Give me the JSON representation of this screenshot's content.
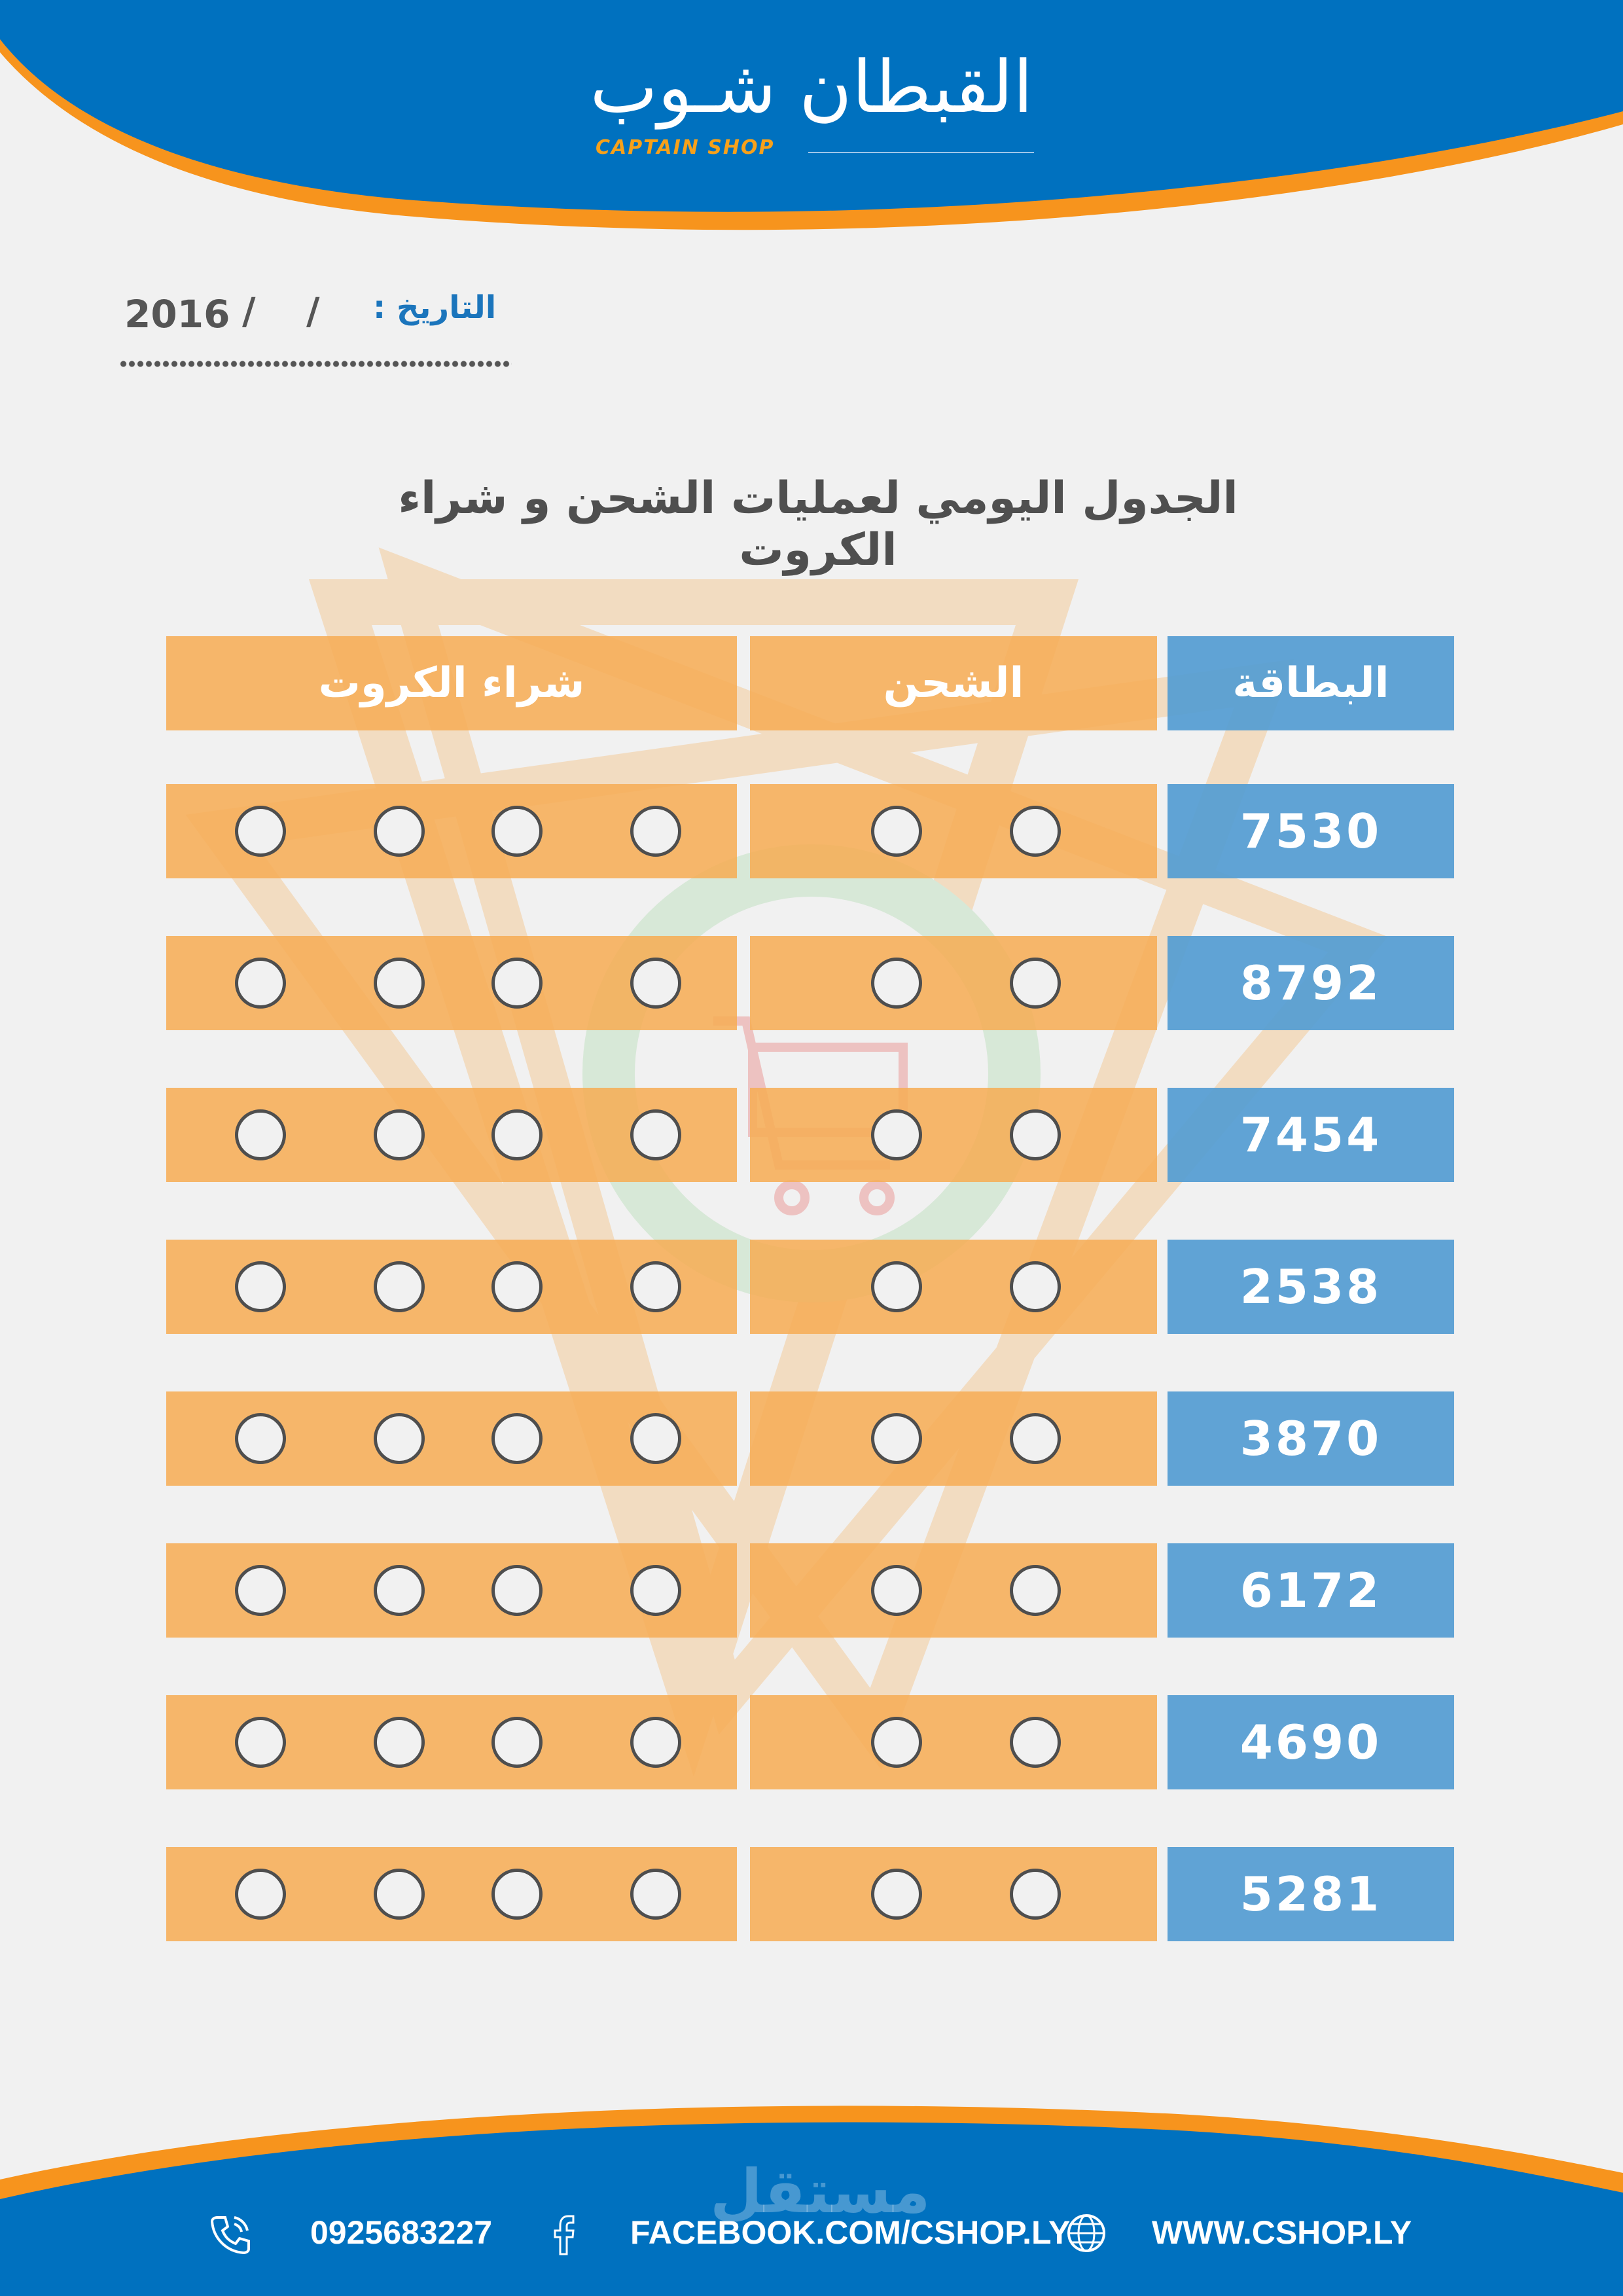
{
  "header": {
    "logo_arabic": "القبطان شـوب",
    "logo_english": "CAPTAIN SHOP"
  },
  "date": {
    "label": "التاريخ :",
    "slash": "/",
    "year": "2016"
  },
  "title": "الجدول اليومي لعمليات الشحن و شراء الكروت",
  "table": {
    "headers": {
      "card": "البطاقة",
      "charge": "الشحن",
      "buy": "شراء الكروت"
    },
    "rows": [
      {
        "card": "7530",
        "charge_slots": 2,
        "buy_slots": 4
      },
      {
        "card": "8792",
        "charge_slots": 2,
        "buy_slots": 4
      },
      {
        "card": "7454",
        "charge_slots": 2,
        "buy_slots": 4
      },
      {
        "card": "2538",
        "charge_slots": 2,
        "buy_slots": 4
      },
      {
        "card": "3870",
        "charge_slots": 2,
        "buy_slots": 4
      },
      {
        "card": "6172",
        "charge_slots": 2,
        "buy_slots": 4
      },
      {
        "card": "4690",
        "charge_slots": 2,
        "buy_slots": 4
      },
      {
        "card": "5281",
        "charge_slots": 2,
        "buy_slots": 4
      }
    ]
  },
  "footer": {
    "phone": "0925683227",
    "facebook": "FACEBOOK.COM/CSHOP.LY",
    "website": "WWW.CSHOP.LY",
    "watermark": "مستقل"
  },
  "colors": {
    "brand_blue": "#0071bf",
    "accent_orange": "#f7941d",
    "bar_orange": "#f6ad56",
    "bar_blue": "#549cd2",
    "title_gray": "#4f4f4f"
  },
  "icons": [
    "phone-icon",
    "facebook-icon",
    "globe-icon",
    "cart-icon"
  ]
}
